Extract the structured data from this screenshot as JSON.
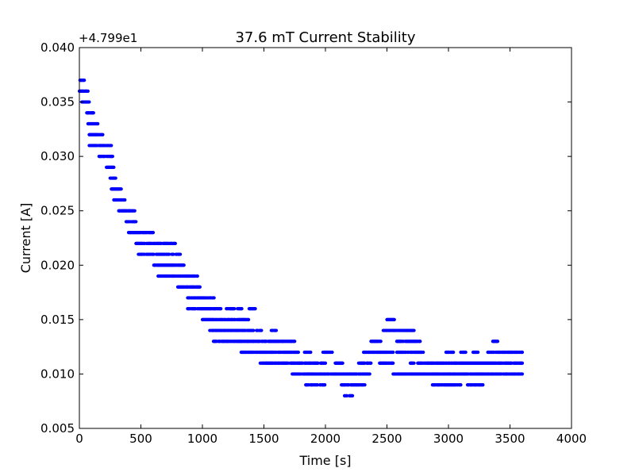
{
  "chart_data": {
    "type": "scatter",
    "title": "37.6 mT Current Stability",
    "xlabel": "Time [s]",
    "ylabel": "Current [A]",
    "offset_text": "+4.799e1",
    "offset_value": 47.99,
    "xlim": [
      0,
      4000
    ],
    "ylim": [
      0.005,
      0.04
    ],
    "xticks": [
      0,
      500,
      1000,
      1500,
      2000,
      2500,
      3000,
      3500,
      4000
    ],
    "yticks": [
      0.005,
      0.01,
      0.015,
      0.02,
      0.025,
      0.03,
      0.035,
      0.04
    ],
    "xtick_labels": [
      "0",
      "500",
      "1000",
      "1500",
      "2000",
      "2500",
      "3000",
      "3500",
      "4000"
    ],
    "ytick_labels": [
      "0.005",
      "0.010",
      "0.015",
      "0.020",
      "0.025",
      "0.030",
      "0.035",
      "0.040"
    ],
    "grid": false,
    "marker_color": "#0000ff",
    "series": [
      {
        "level_bands": [
          {
            "y": 0.037,
            "x_ranges": [
              [
                0,
                40
              ]
            ]
          },
          {
            "y": 0.036,
            "x_ranges": [
              [
                0,
                70
              ]
            ]
          },
          {
            "y": 0.035,
            "x_ranges": [
              [
                20,
                80
              ]
            ]
          },
          {
            "y": 0.034,
            "x_ranges": [
              [
                60,
                120
              ]
            ]
          },
          {
            "y": 0.033,
            "x_ranges": [
              [
                70,
                150
              ]
            ]
          },
          {
            "y": 0.032,
            "x_ranges": [
              [
                80,
                190
              ]
            ]
          },
          {
            "y": 0.031,
            "x_ranges": [
              [
                80,
                260
              ]
            ]
          },
          {
            "y": 0.03,
            "x_ranges": [
              [
                160,
                270
              ]
            ]
          },
          {
            "y": 0.029,
            "x_ranges": [
              [
                220,
                280
              ]
            ]
          },
          {
            "y": 0.028,
            "x_ranges": [
              [
                250,
                300
              ]
            ]
          },
          {
            "y": 0.027,
            "x_ranges": [
              [
                260,
                340
              ]
            ]
          },
          {
            "y": 0.026,
            "x_ranges": [
              [
                280,
                390
              ]
            ]
          },
          {
            "y": 0.025,
            "x_ranges": [
              [
                310,
                450
              ]
            ]
          },
          {
            "y": 0.024,
            "x_ranges": [
              [
                380,
                460
              ]
            ]
          },
          {
            "y": 0.023,
            "x_ranges": [
              [
                400,
                600
              ]
            ]
          },
          {
            "y": 0.022,
            "x_ranges": [
              [
                460,
                780
              ]
            ]
          },
          {
            "y": 0.021,
            "x_ranges": [
              [
                480,
                820
              ]
            ]
          },
          {
            "y": 0.02,
            "x_ranges": [
              [
                600,
                850
              ]
            ]
          },
          {
            "y": 0.019,
            "x_ranges": [
              [
                640,
                960
              ]
            ]
          },
          {
            "y": 0.018,
            "x_ranges": [
              [
                800,
                980
              ]
            ]
          },
          {
            "y": 0.017,
            "x_ranges": [
              [
                880,
                1100
              ]
            ]
          },
          {
            "y": 0.016,
            "x_ranges": [
              [
                880,
                1150
              ],
              [
                1190,
                1320
              ],
              [
                1380,
                1430
              ]
            ]
          },
          {
            "y": 0.015,
            "x_ranges": [
              [
                1000,
                1380
              ]
            ]
          },
          {
            "y": 0.014,
            "x_ranges": [
              [
                1060,
                1480
              ],
              [
                1560,
                1600
              ]
            ]
          },
          {
            "y": 0.013,
            "x_ranges": [
              [
                1090,
                1750
              ]
            ]
          },
          {
            "y": 0.012,
            "x_ranges": [
              [
                1310,
                1780
              ],
              [
                1830,
                1880
              ],
              [
                1980,
                2060
              ],
              [
                2310,
                2550
              ],
              [
                2580,
                2800
              ],
              [
                2980,
                3040
              ],
              [
                3100,
                3140
              ],
              [
                3200,
                3240
              ],
              [
                3320,
                3600
              ]
            ]
          },
          {
            "y": 0.011,
            "x_ranges": [
              [
                1470,
                2000
              ],
              [
                2080,
                2140
              ],
              [
                2270,
                2370
              ],
              [
                2440,
                2550
              ],
              [
                2690,
                2720
              ],
              [
                2750,
                3600
              ]
            ]
          },
          {
            "y": 0.01,
            "x_ranges": [
              [
                1730,
                2360
              ],
              [
                2550,
                3600
              ]
            ]
          },
          {
            "y": 0.009,
            "x_ranges": [
              [
                1840,
                2000
              ],
              [
                2130,
                2320
              ],
              [
                2870,
                3100
              ],
              [
                3150,
                3280
              ]
            ]
          },
          {
            "y": 0.008,
            "x_ranges": [
              [
                2150,
                2220
              ]
            ]
          },
          {
            "y": 0.013,
            "x_ranges": [
              [
                2370,
                2450
              ],
              [
                2580,
                2780
              ],
              [
                3360,
                3400
              ]
            ]
          },
          {
            "y": 0.014,
            "x_ranges": [
              [
                2470,
                2720
              ]
            ]
          },
          {
            "y": 0.015,
            "x_ranges": [
              [
                2500,
                2560
              ]
            ]
          }
        ],
        "points": []
      }
    ]
  }
}
